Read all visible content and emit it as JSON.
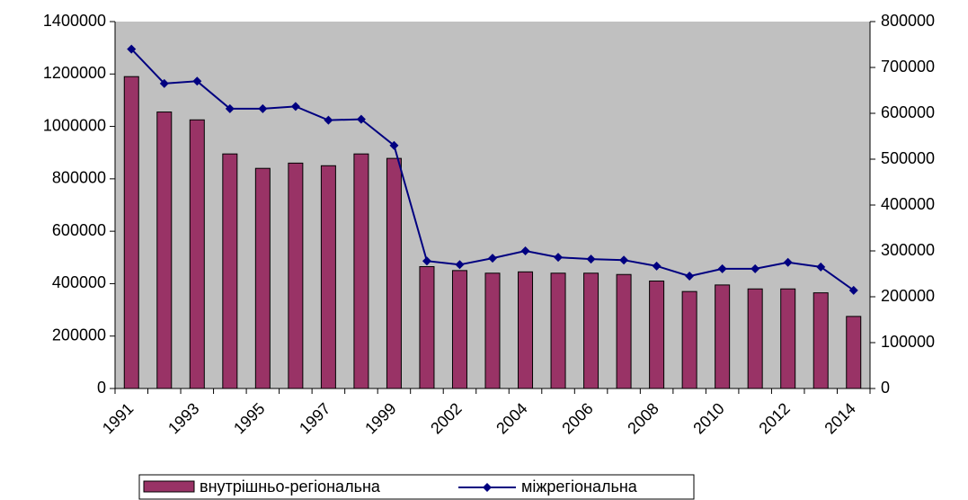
{
  "chart_data": {
    "type": "bar",
    "categories": [
      "1991",
      null,
      "1993",
      null,
      "1995",
      null,
      "1997",
      null,
      "1999",
      null,
      "2002",
      null,
      "2004",
      null,
      "2006",
      null,
      "2008",
      null,
      "2010",
      null,
      "2012",
      null,
      "2014"
    ],
    "series": [
      {
        "name": "внутрішньо-регіональна",
        "type": "bar",
        "color": "#993366",
        "values": [
          1190000,
          1055000,
          1025000,
          895000,
          840000,
          860000,
          850000,
          895000,
          878000,
          465000,
          450000,
          440000,
          445000,
          440000,
          440000,
          435000,
          410000,
          370000,
          395000,
          380000,
          380000,
          365000,
          275000
        ]
      },
      {
        "name": "міжрегіональна",
        "type": "line",
        "axis": "y2",
        "color": "#000080",
        "values": [
          740000,
          665000,
          670000,
          610000,
          610000,
          615000,
          585000,
          587000,
          530000,
          278000,
          270000,
          284000,
          300000,
          286000,
          282000,
          280000,
          267000,
          245000,
          261000,
          261000,
          275000,
          265000,
          214000
        ]
      }
    ],
    "ylim": [
      0,
      1400000
    ],
    "yticks": [
      0,
      200000,
      400000,
      600000,
      800000,
      1000000,
      1200000,
      1400000
    ],
    "y2lim": [
      0,
      800000
    ],
    "y2ticks": [
      0,
      100000,
      200000,
      300000,
      400000,
      500000,
      600000,
      700000,
      800000
    ],
    "legend": "bottom",
    "background": "#c0c0c0"
  }
}
